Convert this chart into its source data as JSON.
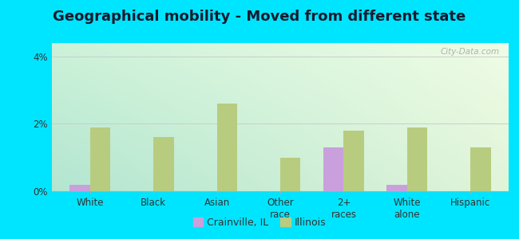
{
  "title": "Geographical mobility - Moved from different state",
  "categories": [
    "White",
    "Black",
    "Asian",
    "Other\nrace",
    "2+\nraces",
    "White\nalone",
    "Hispanic"
  ],
  "crainville_values": [
    0.2,
    0.0,
    0.0,
    0.0,
    1.3,
    0.2,
    0.0
  ],
  "illinois_values": [
    1.9,
    1.6,
    2.6,
    1.0,
    1.8,
    1.9,
    1.3
  ],
  "crainville_color": "#c9a0dc",
  "illinois_color": "#b8cc80",
  "ylim": [
    0,
    4.4
  ],
  "yticks": [
    0,
    2,
    4
  ],
  "ytick_labels": [
    "0%",
    "2%",
    "4%"
  ],
  "bar_width": 0.32,
  "outer_bg": "#00e5ff",
  "plot_bg_left": "#b8ddd0",
  "plot_bg_right": "#e8f5e0",
  "watermark": "City-Data.com",
  "legend_crainville": "Crainville, IL",
  "legend_illinois": "Illinois",
  "title_fontsize": 13,
  "axis_fontsize": 8.5,
  "legend_fontsize": 9
}
